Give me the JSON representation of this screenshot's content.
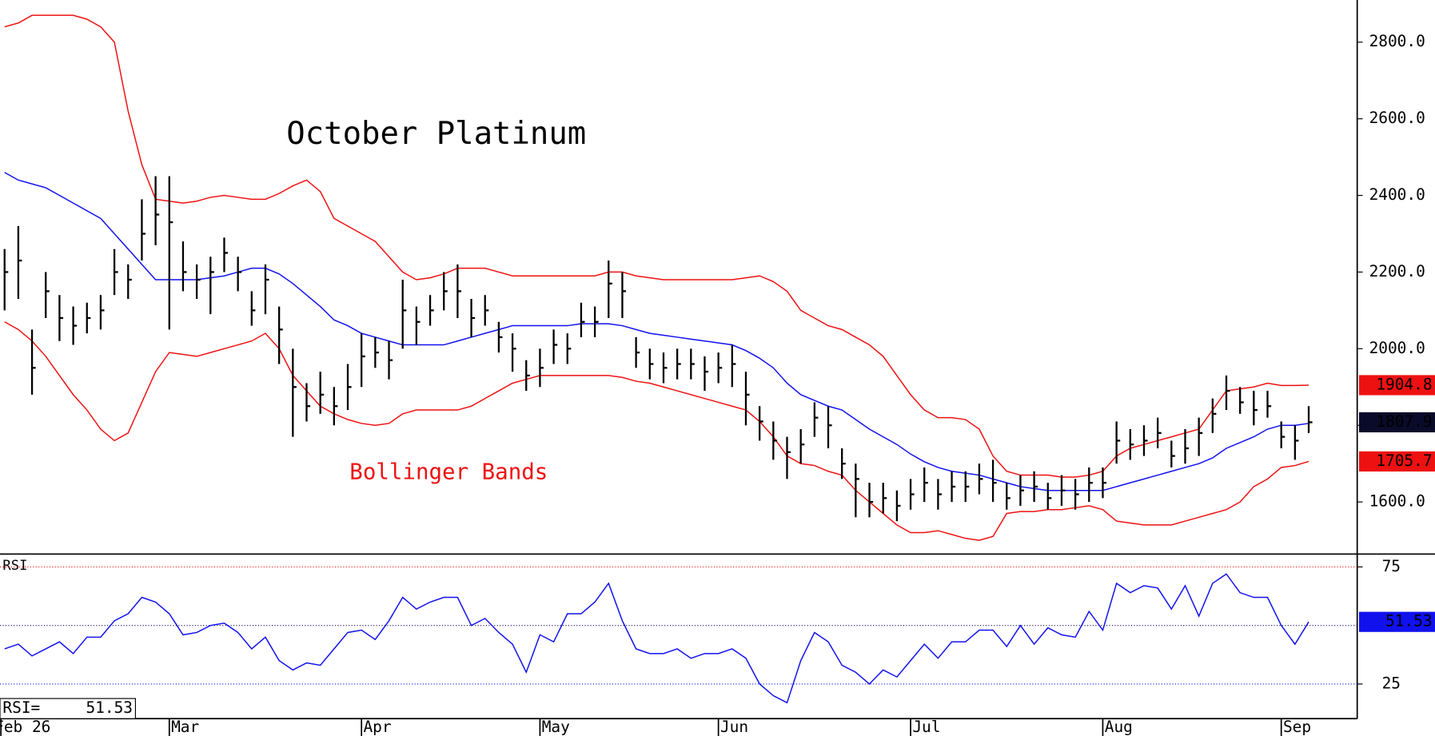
{
  "chart_data": [
    {
      "type": "ohlc",
      "title": "October Platinum",
      "annotation": "Bollinger Bands",
      "categories": [
        "Feb 26",
        null,
        null,
        null,
        null,
        null,
        null,
        null,
        null,
        null,
        null,
        null,
        "Mar",
        null,
        null,
        null,
        null,
        null,
        null,
        null,
        null,
        null,
        null,
        null,
        null,
        null,
        "Apr",
        null,
        null,
        null,
        null,
        null,
        null,
        null,
        null,
        null,
        null,
        null,
        null,
        "May",
        null,
        null,
        null,
        null,
        null,
        null,
        null,
        null,
        null,
        null,
        null,
        null,
        "Jun",
        null,
        null,
        null,
        null,
        null,
        null,
        null,
        null,
        null,
        null,
        null,
        null,
        null,
        "Jul",
        null,
        null,
        null,
        null,
        null,
        null,
        null,
        null,
        null,
        null,
        null,
        null,
        null,
        "Aug",
        null,
        null,
        null,
        null,
        null,
        null,
        null,
        null,
        null,
        null,
        null,
        null,
        "Sep",
        null,
        null
      ],
      "high": [
        2260,
        2320,
        2050,
        2200,
        2140,
        2110,
        2120,
        2140,
        2260,
        2220,
        2390,
        2450,
        2450,
        2280,
        2220,
        2240,
        2290,
        2240,
        2150,
        2220,
        2110,
        2000,
        1910,
        1940,
        1900,
        1960,
        2040,
        2030,
        2020,
        2180,
        2110,
        2140,
        2200,
        2220,
        2130,
        2140,
        2070,
        2040,
        1970,
        2000,
        2050,
        2040,
        2120,
        2110,
        2230,
        2200,
        2030,
        2000,
        1990,
        2000,
        2000,
        1980,
        1990,
        2010,
        1940,
        1850,
        1810,
        1770,
        1790,
        1860,
        1850,
        1740,
        1700,
        1650,
        1650,
        1630,
        1660,
        1690,
        1660,
        1680,
        1680,
        1700,
        1710,
        1650,
        1670,
        1680,
        1650,
        1670,
        1660,
        1690,
        1690,
        1810,
        1790,
        1800,
        1820,
        1760,
        1790,
        1820,
        1870,
        1930,
        1900,
        1890,
        1890,
        1810,
        1800,
        1850
      ],
      "low": [
        2100,
        2130,
        1880,
        2080,
        2020,
        2010,
        2040,
        2050,
        2140,
        2130,
        2230,
        2270,
        2050,
        2150,
        2130,
        2090,
        2200,
        2150,
        2060,
        2090,
        1960,
        1770,
        1810,
        1830,
        1800,
        1840,
        1900,
        1950,
        1920,
        2000,
        2010,
        2060,
        2100,
        2080,
        2030,
        2060,
        1990,
        1940,
        1890,
        1900,
        1960,
        1960,
        2030,
        2030,
        2080,
        2080,
        1950,
        1920,
        1910,
        1920,
        1920,
        1890,
        1910,
        1900,
        1800,
        1760,
        1710,
        1660,
        1700,
        1770,
        1740,
        1660,
        1560,
        1560,
        1570,
        1550,
        1580,
        1600,
        1580,
        1600,
        1600,
        1620,
        1600,
        1580,
        1590,
        1600,
        1580,
        1590,
        1580,
        1600,
        1610,
        1700,
        1710,
        1720,
        1740,
        1690,
        1700,
        1720,
        1780,
        1840,
        1830,
        1800,
        1820,
        1740,
        1710,
        1780
      ],
      "close": [
        2200,
        2230,
        1950,
        2150,
        2080,
        2060,
        2080,
        2100,
        2200,
        2180,
        2300,
        2350,
        2330,
        2200,
        2180,
        2200,
        2250,
        2200,
        2100,
        2180,
        2050,
        1900,
        1850,
        1880,
        1850,
        1900,
        1980,
        1990,
        1970,
        2100,
        2070,
        2100,
        2150,
        2150,
        2080,
        2100,
        2030,
        2000,
        1930,
        1950,
        2010,
        2000,
        2070,
        2070,
        2170,
        2150,
        1990,
        1960,
        1950,
        1960,
        1960,
        1940,
        1950,
        1960,
        1880,
        1810,
        1760,
        1730,
        1750,
        1820,
        1800,
        1700,
        1660,
        1600,
        1610,
        1590,
        1620,
        1650,
        1620,
        1640,
        1640,
        1660,
        1650,
        1610,
        1630,
        1640,
        1610,
        1630,
        1620,
        1650,
        1650,
        1760,
        1750,
        1760,
        1780,
        1720,
        1740,
        1780,
        1830,
        1890,
        1860,
        1840,
        1850,
        1770,
        1760,
        1807.9
      ],
      "upper_band": [
        2840,
        2850,
        2870,
        2870,
        2870,
        2870,
        2860,
        2840,
        2800,
        2620,
        2480,
        2390,
        2385,
        2380,
        2385,
        2395,
        2400,
        2395,
        2390,
        2390,
        2405,
        2425,
        2440,
        2410,
        2340,
        2320,
        2300,
        2280,
        2240,
        2200,
        2180,
        2185,
        2195,
        2210,
        2210,
        2210,
        2200,
        2190,
        2190,
        2190,
        2190,
        2190,
        2190,
        2190,
        2200,
        2200,
        2190,
        2185,
        2180,
        2180,
        2180,
        2180,
        2180,
        2180,
        2185,
        2190,
        2175,
        2150,
        2100,
        2080,
        2060,
        2050,
        2030,
        2010,
        1980,
        1930,
        1880,
        1840,
        1820,
        1820,
        1815,
        1790,
        1720,
        1680,
        1670,
        1670,
        1670,
        1665,
        1665,
        1670,
        1680,
        1720,
        1740,
        1750,
        1760,
        1770,
        1780,
        1790,
        1840,
        1890,
        1895,
        1900,
        1910,
        1904,
        1904,
        1904.8
      ],
      "middle_band": [
        2460,
        2440,
        2430,
        2420,
        2400,
        2380,
        2360,
        2340,
        2300,
        2260,
        2220,
        2180,
        2180,
        2180,
        2180,
        2185,
        2190,
        2200,
        2210,
        2210,
        2195,
        2170,
        2140,
        2110,
        2075,
        2060,
        2040,
        2030,
        2020,
        2010,
        2010,
        2010,
        2010,
        2020,
        2030,
        2040,
        2050,
        2060,
        2060,
        2060,
        2060,
        2060,
        2065,
        2065,
        2065,
        2060,
        2050,
        2040,
        2035,
        2030,
        2025,
        2020,
        2015,
        2010,
        1995,
        1975,
        1950,
        1910,
        1880,
        1865,
        1850,
        1840,
        1815,
        1790,
        1770,
        1750,
        1725,
        1705,
        1690,
        1680,
        1675,
        1670,
        1660,
        1650,
        1640,
        1635,
        1630,
        1630,
        1630,
        1630,
        1630,
        1640,
        1650,
        1660,
        1670,
        1680,
        1690,
        1700,
        1715,
        1740,
        1755,
        1770,
        1790,
        1800,
        1800,
        1805
      ],
      "lower_band": [
        2070,
        2050,
        2020,
        1980,
        1930,
        1880,
        1840,
        1790,
        1760,
        1780,
        1860,
        1940,
        1990,
        1985,
        1980,
        1990,
        2000,
        2010,
        2020,
        2040,
        2000,
        1930,
        1890,
        1850,
        1830,
        1815,
        1805,
        1800,
        1805,
        1830,
        1840,
        1840,
        1840,
        1840,
        1850,
        1870,
        1890,
        1910,
        1920,
        1930,
        1930,
        1930,
        1930,
        1930,
        1930,
        1925,
        1915,
        1910,
        1900,
        1890,
        1880,
        1870,
        1860,
        1850,
        1840,
        1810,
        1770,
        1720,
        1700,
        1695,
        1680,
        1670,
        1630,
        1600,
        1570,
        1540,
        1520,
        1520,
        1525,
        1515,
        1505,
        1500,
        1510,
        1570,
        1575,
        1575,
        1580,
        1580,
        1585,
        1590,
        1580,
        1550,
        1545,
        1540,
        1540,
        1540,
        1550,
        1560,
        1570,
        1580,
        1600,
        1640,
        1660,
        1690,
        1695,
        1705.7
      ],
      "bar_color": "#000000",
      "band_color": "#ee1111",
      "middle_color": "#1111ee",
      "close_box_color": "#0a0a2a",
      "ylim": [
        1464,
        2910
      ],
      "yticks": [
        {
          "value": 1600,
          "label": "1600.0"
        },
        {
          "value": 1800,
          "label": "1800.0"
        },
        {
          "value": 2000,
          "label": "2000.0"
        },
        {
          "value": 2200,
          "label": "2200.0"
        },
        {
          "value": 2400,
          "label": "2400.0"
        },
        {
          "value": 2600,
          "label": "2600.0"
        },
        {
          "value": 2800,
          "label": "2800.0"
        }
      ]
    },
    {
      "type": "line",
      "label": "RSI",
      "readout_label": "RSI=",
      "values": [
        40,
        42,
        37,
        40,
        43,
        38,
        45,
        45,
        52,
        55,
        62,
        60,
        55,
        46,
        47,
        50,
        51,
        47,
        40,
        45,
        35,
        31,
        34,
        33,
        40,
        47,
        48,
        44,
        52,
        62,
        57,
        60,
        62,
        62,
        50,
        53,
        47,
        42,
        30,
        46,
        43,
        55,
        55,
        60,
        68,
        52,
        40,
        38,
        38,
        40,
        36,
        38,
        38,
        40,
        36,
        25,
        20,
        17,
        35,
        47,
        43,
        33,
        30,
        25,
        31,
        28,
        35,
        42,
        36,
        43,
        43,
        48,
        48,
        41,
        50,
        42,
        49,
        46,
        45,
        56,
        48,
        68,
        64,
        67,
        66,
        57,
        67,
        54,
        68,
        72,
        64,
        62,
        62,
        50,
        42,
        51.53
      ],
      "color": "#1111ee",
      "ylim": [
        10.2,
        80.5
      ],
      "yticks": [
        25,
        75
      ],
      "hlines": [
        {
          "value": 75,
          "color": "#ee1111"
        },
        {
          "value": 50,
          "color": "#0a0a5a"
        },
        {
          "value": 25,
          "color": "#1111ee"
        }
      ]
    }
  ]
}
